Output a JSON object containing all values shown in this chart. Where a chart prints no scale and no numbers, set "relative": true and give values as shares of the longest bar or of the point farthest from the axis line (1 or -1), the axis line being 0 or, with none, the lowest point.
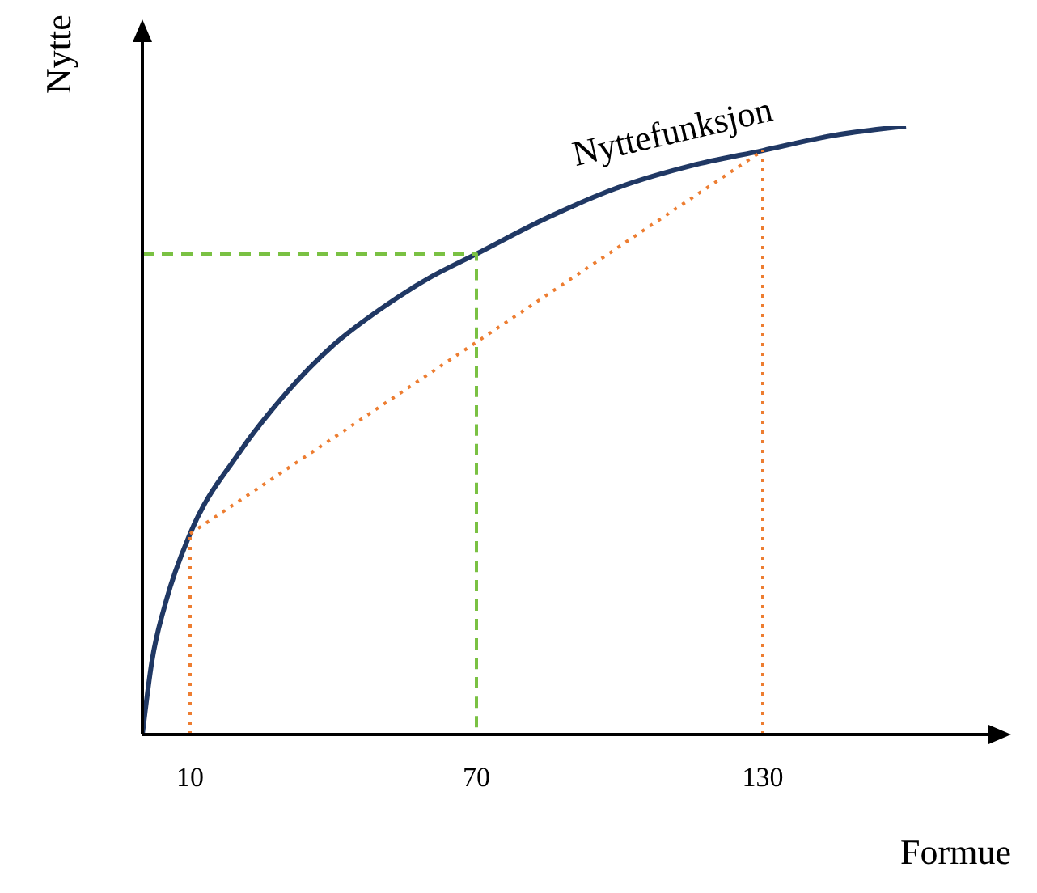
{
  "chart_data": {
    "type": "line",
    "xlabel": "Formue",
    "ylabel": "Nytte",
    "relative": true,
    "xlim": [
      0,
      180
    ],
    "xticks": [
      10,
      70,
      130
    ],
    "grid": false,
    "legend": false,
    "marker": "none",
    "series": [
      {
        "name": "Nyttefunksjon",
        "color": "#203864",
        "line_style": "solid",
        "x": [
          0,
          2,
          5,
          10,
          20,
          30,
          40,
          50,
          60,
          70,
          85,
          100,
          115,
          130,
          145,
          160
        ],
        "values": [
          0,
          0.12,
          0.22,
          0.33,
          0.46,
          0.56,
          0.64,
          0.7,
          0.75,
          0.79,
          0.85,
          0.9,
          0.935,
          0.96,
          0.985,
          1
        ]
      },
      {
        "color": "#7ac143",
        "line_style": "dashed",
        "x": [
          0,
          70,
          70
        ],
        "values": [
          0.79,
          0.79,
          0
        ]
      },
      {
        "color": "#ed7d31",
        "line_style": "dotted",
        "x": [
          10,
          130
        ],
        "values": [
          0.33,
          0.96
        ]
      },
      {
        "color": "#ed7d31",
        "line_style": "dotted",
        "x": [
          10,
          10
        ],
        "values": [
          0,
          0.33
        ]
      },
      {
        "color": "#ed7d31",
        "line_style": "dotted",
        "x": [
          130,
          130
        ],
        "values": [
          0,
          0.96
        ]
      }
    ]
  }
}
